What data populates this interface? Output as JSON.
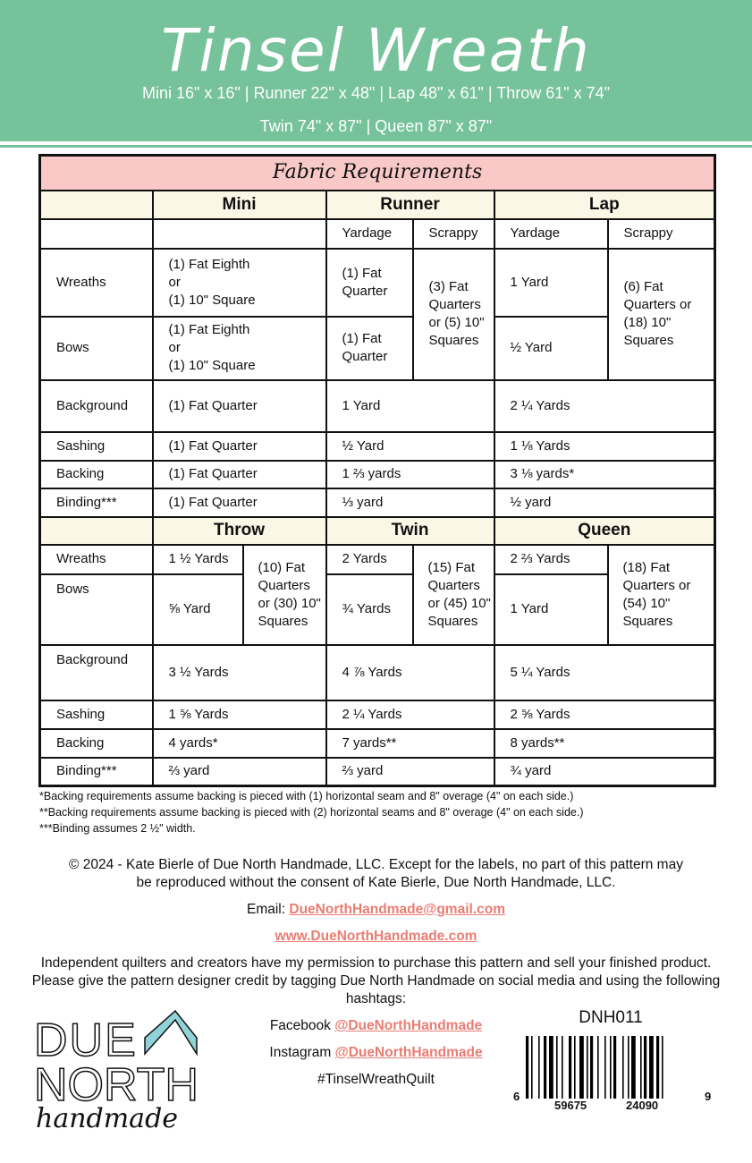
{
  "header": {
    "title": "Tinsel Wreath",
    "sizes_line1": "Mini 16\" x 16\" | Runner 22\" x 48\" | Lap 48\" x 61\" | Throw 61\" x 74\"",
    "sizes_line2": "Twin 74\" x 87\" | Queen 87\" x 87\""
  },
  "table": {
    "title": "Fabric Requirements",
    "top_sizes": [
      "Mini",
      "Runner",
      "Lap"
    ],
    "sub": [
      "Yardage",
      "Scrappy",
      "Yardage",
      "Scrappy"
    ],
    "wreaths": {
      "label": "Wreaths",
      "mini": "(1) Fat Eighth\nor\n(1) 10\" Square",
      "runner_yard": "(1) Fat Quarter",
      "runner_scrappy": "(3) Fat Quarters or (5) 10\" Squares",
      "lap_yard": "1 Yard",
      "lap_scrappy": "(6) Fat Quarters or (18) 10\" Squares"
    },
    "bows": {
      "label": "Bows",
      "mini": "(1) Fat Eighth\nor\n(1) 10\" Square",
      "runner_yard": "(1) Fat Quarter",
      "lap_yard": "½ Yard"
    },
    "background": {
      "label": "Background",
      "mini": "(1) Fat Quarter",
      "runner": "1 Yard",
      "lap": "2 ¼ Yards"
    },
    "sashing": {
      "label": "Sashing",
      "mini": "(1) Fat Quarter",
      "runner": "½ Yard",
      "lap": "1 ⅛ Yards"
    },
    "backing": {
      "label": "Backing",
      "mini": "(1) Fat Quarter",
      "runner": "1 ⅔ yards",
      "lap": "3 ⅛ yards*"
    },
    "binding": {
      "label": "Binding***",
      "mini": "(1) Fat Quarter",
      "runner": "⅓ yard",
      "lap": "½ yard"
    },
    "bottom_sizes": [
      "Throw",
      "Twin",
      "Queen"
    ],
    "b_wreaths": {
      "label": "Wreaths",
      "throw_yard": "1 ½ Yards",
      "throw_scrappy": "(10) Fat Quarters or (30) 10\" Squares",
      "twin_yard": "2 Yards",
      "twin_scrappy": "(15) Fat Quarters or (45) 10\" Squares",
      "queen_yard": "2 ⅔ Yards",
      "queen_scrappy": "(18) Fat Quarters or (54) 10\" Squares"
    },
    "b_bows": {
      "label": "Bows",
      "throw_yard": "⅝ Yard",
      "twin_yard": "¾ Yards",
      "queen_yard": "1 Yard"
    },
    "b_background": {
      "label": "Background",
      "throw": "3 ½ Yards",
      "twin": "4 ⅞ Yards",
      "queen": "5 ¼ Yards"
    },
    "b_sashing": {
      "label": "Sashing",
      "throw": "1 ⅝ Yards",
      "twin": "2 ¼ Yards",
      "queen": "2 ⅝ Yards"
    },
    "b_backing": {
      "label": "Backing",
      "throw": "4 yards*",
      "twin": "7 yards**",
      "queen": "8 yards**"
    },
    "b_binding": {
      "label": "Binding***",
      "throw": "⅔ yard",
      "twin": "⅔ yard",
      "queen": "¾ yard"
    }
  },
  "notes": [
    "*Backing requirements assume backing is pieced with (1) horizontal seam and 8\" overage (4\" on each side.)",
    "**Backing requirements assume backing is pieced with (2) horizontal seams and 8\" overage (4\" on each side.)",
    "***Binding assumes 2 ½\" width."
  ],
  "footer": {
    "copyright": "© 2024 - Kate Bierle of Due North Handmade, LLC. Except for the labels, no part of this pattern may be reproduced without the consent of Kate Bierle, Due North Handmade, LLC.",
    "email_label": "Email:",
    "email": "DueNorthHandmade@gmail.com",
    "website": "www.DueNorthHandmade.com",
    "permission": "Independent quilters and creators have my permission to purchase this pattern and sell your finished product. Please give the pattern designer credit by tagging Due North Handmade on social media and using the following hashtags:",
    "facebook_label": "Facebook",
    "facebook": "@DueNorthHandmade",
    "instagram_label": "Instagram",
    "instagram": "@DueNorthHandmade",
    "hashtag": "#TinselWreathQuilt",
    "logo_text": "DUE NORTH handmade",
    "sku": "DNH011",
    "barcode_left": "6",
    "barcode_mid1": "59675",
    "barcode_mid2": "24090",
    "barcode_right": "9"
  },
  "colors": {
    "header_green": "#76c29a",
    "title_pink": "#f8c9c7",
    "header_cream": "#fbf7e6",
    "link": "#e97d72",
    "logo_teal": "#8fd3d8"
  }
}
